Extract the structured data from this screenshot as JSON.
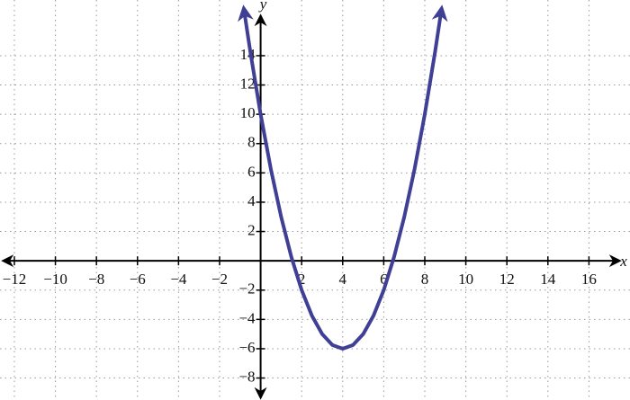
{
  "chart_data": {
    "type": "line",
    "x_label": "x",
    "y_label": "y",
    "x": [
      -0.8,
      -0.5,
      0,
      0.5,
      1,
      1.5,
      2,
      2.5,
      3,
      3.5,
      4,
      4.5,
      5,
      5.5,
      6,
      6.5,
      7,
      7.5,
      8,
      8.5,
      8.8
    ],
    "values": [
      17.04,
      14.25,
      10,
      6.25,
      3,
      0.25,
      -2,
      -3.75,
      -5,
      -5.75,
      -6,
      -5.75,
      -5,
      -3.75,
      -2,
      0.25,
      3,
      6.25,
      10,
      14.25,
      17.04
    ],
    "color": "#3f3f96",
    "xlim": [
      -12.7,
      18
    ],
    "ylim": [
      -9.5,
      17.8
    ],
    "xticks": [
      {
        "value": -12,
        "label": "−12"
      },
      {
        "value": -10,
        "label": "−10"
      },
      {
        "value": -8,
        "label": "−8"
      },
      {
        "value": -6,
        "label": "−6"
      },
      {
        "value": -4,
        "label": "−4"
      },
      {
        "value": -2,
        "label": "−2"
      },
      2,
      4,
      6,
      8,
      10,
      12,
      14,
      16
    ],
    "yticks": [
      {
        "value": -8,
        "label": "−8"
      },
      {
        "value": -6,
        "label": "−6"
      },
      {
        "value": -4,
        "label": "−4"
      },
      {
        "value": -2,
        "label": "−2"
      },
      2,
      4,
      6,
      8,
      10,
      12,
      14
    ],
    "grid": true
  }
}
